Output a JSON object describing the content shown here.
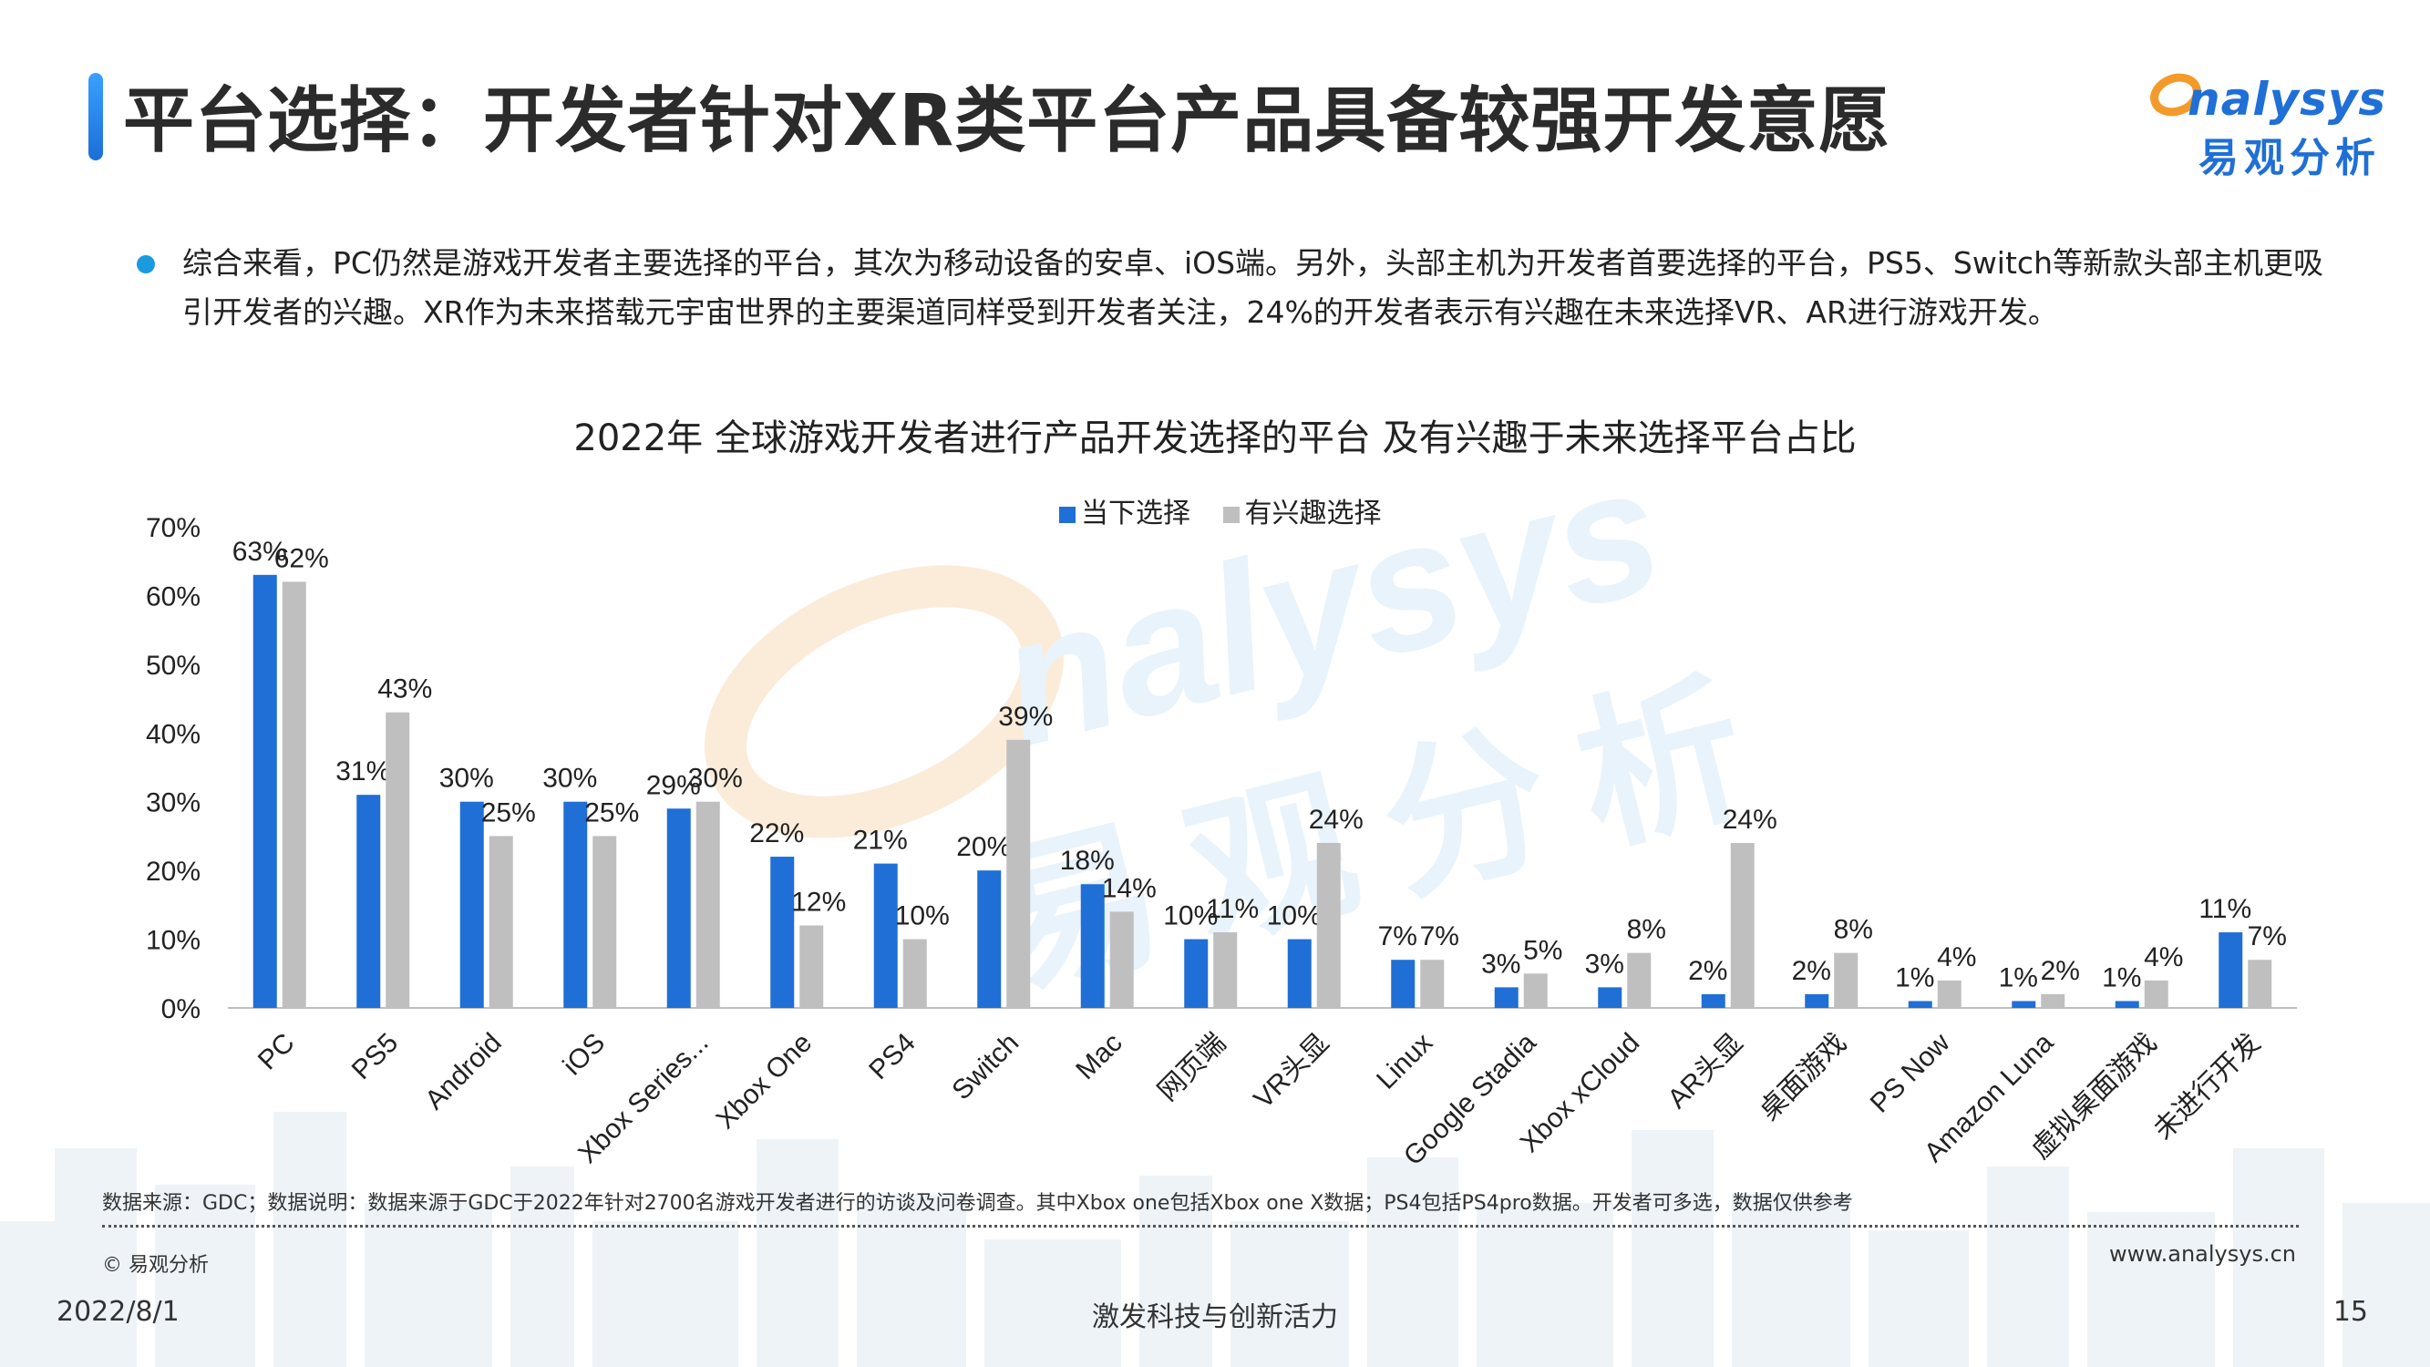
{
  "header": {
    "title": "平台选择：开发者针对XR类平台产品具备较强开发意愿",
    "logo_text": "nalysys",
    "logo_cn": "易观分析"
  },
  "summary": {
    "text": "综合来看，PC仍然是游戏开发者主要选择的平台，其次为移动设备的安卓、iOS端。另外，头部主机为开发者首要选择的平台，PS5、Switch等新款头部主机更吸引开发者的兴趣。XR作为未来搭载元宇宙世界的主要渠道同样受到开发者关注，24%的开发者表示有兴趣在未来选择VR、AR进行游戏开发。"
  },
  "watermark": {
    "text_en": "nalysys",
    "text_cn": "易观分析"
  },
  "chart_data": {
    "type": "bar",
    "title": "2022年 全球游戏开发者进行产品开发选择的平台 及有兴趣于未来选择平台占比",
    "categories": [
      "PC",
      "PS5",
      "Android",
      "iOS",
      "Xbox Series...",
      "Xbox One",
      "PS4",
      "Switch",
      "Mac",
      "网页端",
      "VR头显",
      "Linux",
      "Google Stadia",
      "Xbox xCloud",
      "AR头显",
      "桌面游戏",
      "PS Now",
      "Amazon Luna",
      "虚拟桌面游戏",
      "未进行开发"
    ],
    "series": [
      {
        "name": "当下选择",
        "color": "#1f6fd6",
        "values": [
          63,
          31,
          30,
          30,
          29,
          22,
          21,
          20,
          18,
          10,
          10,
          7,
          3,
          3,
          2,
          2,
          1,
          1,
          1,
          11
        ]
      },
      {
        "name": "有兴趣选择",
        "color": "#bfbfbf",
        "values": [
          62,
          43,
          25,
          25,
          30,
          12,
          10,
          39,
          14,
          11,
          24,
          7,
          5,
          8,
          24,
          8,
          4,
          2,
          4,
          7
        ]
      }
    ],
    "ylim": [
      0,
      70
    ],
    "yticks": [
      "0%",
      "10%",
      "20%",
      "30%",
      "40%",
      "50%",
      "60%",
      "70%"
    ],
    "value_suffix": "%",
    "legend_position": "top-center",
    "grid": false
  },
  "footer": {
    "note": "数据来源：GDC；数据说明：数据来源于GDC于2022年针对2700名游戏开发者进行的访谈及问卷调查。其中Xbox one包括Xbox one X数据；PS4包括PS4pro数据。开发者可多选，数据仅供参考",
    "copyright": "© 易观分析",
    "website": "www.analysys.cn",
    "date": "2022/8/1",
    "slogan": "激发科技与创新活力",
    "page_number": "15"
  }
}
